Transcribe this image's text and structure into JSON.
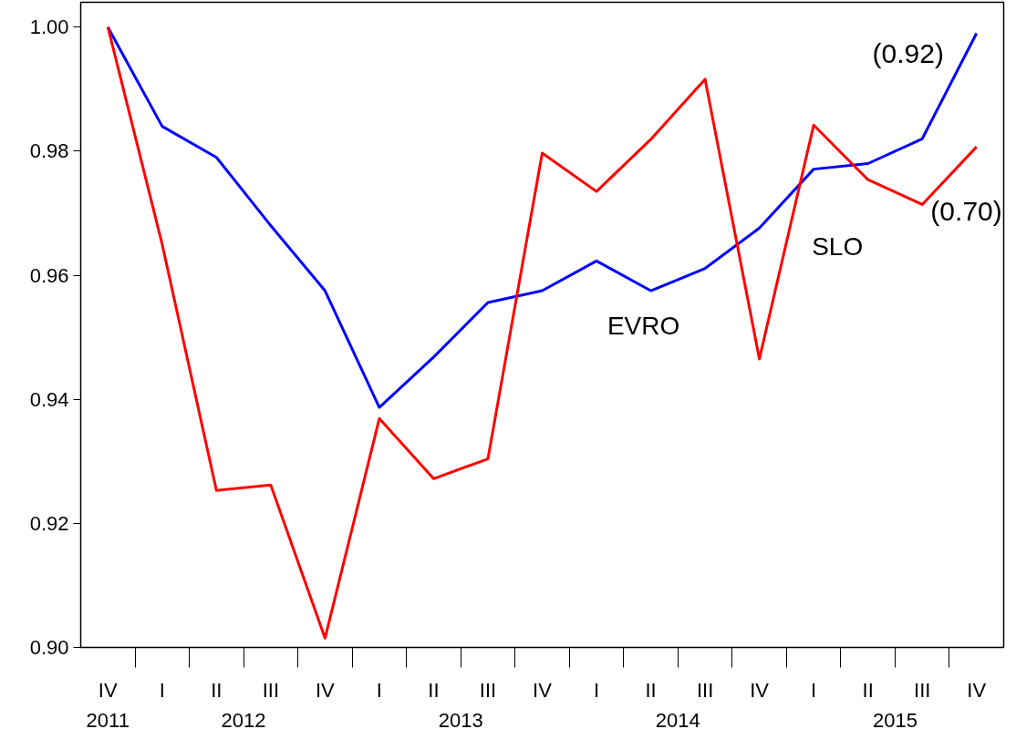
{
  "chart_data": {
    "type": "line",
    "line_style": "solid",
    "categories": [
      "IV",
      "I",
      "II",
      "III",
      "IV",
      "I",
      "II",
      "III",
      "IV",
      "I",
      "II",
      "III",
      "IV",
      "I",
      "II",
      "III",
      "IV"
    ],
    "ylim": [
      0.9,
      1.004
    ],
    "yticks": [
      {
        "value": 0.9,
        "label": "0.90"
      },
      {
        "value": 0.92,
        "label": "0.92"
      },
      {
        "value": 0.94,
        "label": "0.94"
      },
      {
        "value": 0.96,
        "label": "0.96"
      },
      {
        "value": 0.98,
        "label": "0.98"
      },
      {
        "value": 1.0,
        "label": "1.00"
      }
    ],
    "series": [
      {
        "name": "EVRO",
        "color": "#0000ff",
        "values": [
          1.0,
          0.984,
          0.979,
          0.968,
          0.9575,
          0.9387,
          0.9468,
          0.9556,
          0.9575,
          0.9623,
          0.9575,
          0.9611,
          0.9676,
          0.9771,
          0.978,
          0.982,
          0.999
        ]
      },
      {
        "name": "SLO",
        "color": "#ff0000",
        "values": [
          1.0,
          0.965,
          0.9253,
          0.9262,
          0.9015,
          0.9369,
          0.9272,
          0.9304,
          0.9797,
          0.9735,
          0.9819,
          0.9916,
          0.9465,
          0.9842,
          0.9754,
          0.9714,
          0.9807
        ]
      }
    ],
    "annotations": [
      "(0.92)",
      "(0.70)",
      "2011",
      "2012",
      "2013",
      "2014",
      "2015"
    ]
  }
}
